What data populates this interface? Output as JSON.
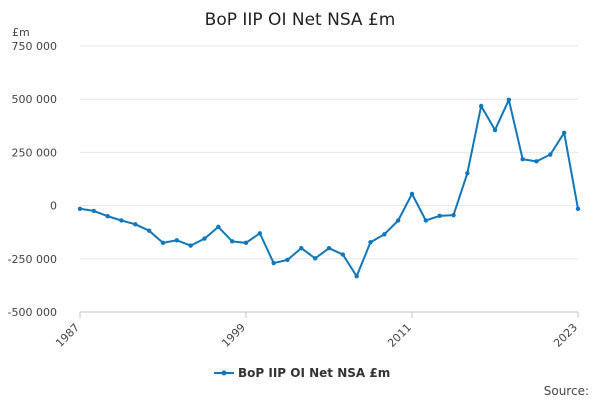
{
  "chart_data": {
    "type": "line",
    "title": "BoP IIP OI Net NSA £m",
    "unit_label": "£m",
    "source_label": "Source:",
    "x": [
      1987,
      1988,
      1989,
      1990,
      1991,
      1992,
      1993,
      1994,
      1995,
      1996,
      1997,
      1998,
      1999,
      2000,
      2001,
      2002,
      2003,
      2004,
      2005,
      2006,
      2007,
      2008,
      2009,
      2010,
      2011,
      2012,
      2013,
      2014,
      2015,
      2016,
      2017,
      2018,
      2019,
      2020,
      2021,
      2022,
      2023
    ],
    "series": [
      {
        "name": "BoP IIP OI Net NSA £m",
        "color": "#1177bb",
        "values": [
          -15000,
          -25000,
          -50000,
          -70000,
          -88000,
          -118000,
          -175000,
          -163000,
          -188000,
          -155000,
          -100000,
          -168000,
          -175000,
          -130000,
          -270000,
          -255000,
          -200000,
          -248000,
          -200000,
          -230000,
          -332000,
          -172000,
          -135000,
          -70000,
          55000,
          -70000,
          -48000,
          -45000,
          152000,
          468000,
          355000,
          497000,
          218000,
          208000,
          240000,
          342000,
          -15000
        ]
      }
    ],
    "y_ticks": [
      {
        "value": 750000,
        "label": "750 000"
      },
      {
        "value": 500000,
        "label": "500 000"
      },
      {
        "value": 250000,
        "label": "250 000"
      },
      {
        "value": 0,
        "label": "0"
      },
      {
        "value": -250000,
        "label": "-250 000"
      },
      {
        "value": -500000,
        "label": "-500 000"
      }
    ],
    "x_ticks": [
      1987,
      1999,
      2011,
      2023
    ],
    "ylim": [
      -500000,
      750000
    ],
    "grid": true,
    "legend_position": "bottom"
  }
}
